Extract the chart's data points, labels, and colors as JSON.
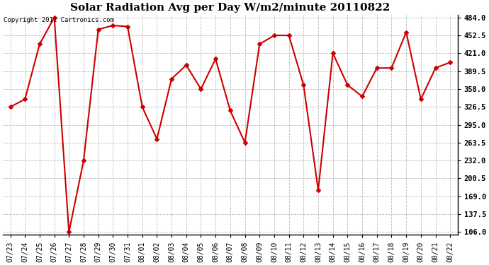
{
  "title": "Solar Radiation Avg per Day W/m2/minute 20110822",
  "copyright_text": "Copyright 2011 Cartronics.com",
  "dates": [
    "07/23",
    "07/24",
    "07/25",
    "07/26",
    "07/27",
    "07/28",
    "07/29",
    "07/30",
    "07/31",
    "08/01",
    "08/02",
    "08/03",
    "08/04",
    "08/05",
    "08/06",
    "08/07",
    "08/08",
    "08/09",
    "08/10",
    "08/11",
    "08/12",
    "08/13",
    "08/14",
    "08/15",
    "08/16",
    "08/17",
    "08/18",
    "08/19",
    "08/20",
    "08/21",
    "08/22"
  ],
  "values": [
    326.5,
    340.0,
    437.0,
    484.0,
    106.0,
    232.0,
    463.0,
    470.0,
    468.0,
    326.5,
    270.0,
    376.0,
    400.0,
    358.0,
    411.0,
    320.0,
    263.5,
    437.0,
    452.5,
    452.5,
    365.0,
    180.0,
    421.0,
    365.0,
    345.0,
    395.0,
    395.0,
    458.0,
    340.0,
    395.0,
    405.0
  ],
  "line_color": "#cc0000",
  "marker": "D",
  "marker_size": 3,
  "line_width": 1.5,
  "y_min": 106.0,
  "y_max": 484.0,
  "y_ticks": [
    106.0,
    137.5,
    169.0,
    200.5,
    232.0,
    263.5,
    295.0,
    326.5,
    358.0,
    389.5,
    421.0,
    452.5,
    484.0
  ],
  "bg_color": "#ffffff",
  "plot_bg_color": "#ffffff",
  "grid_color": "#bbbbbb",
  "title_fontsize": 11,
  "copyright_fontsize": 6.5,
  "tick_fontsize": 7,
  "ytick_fontsize": 7.5
}
